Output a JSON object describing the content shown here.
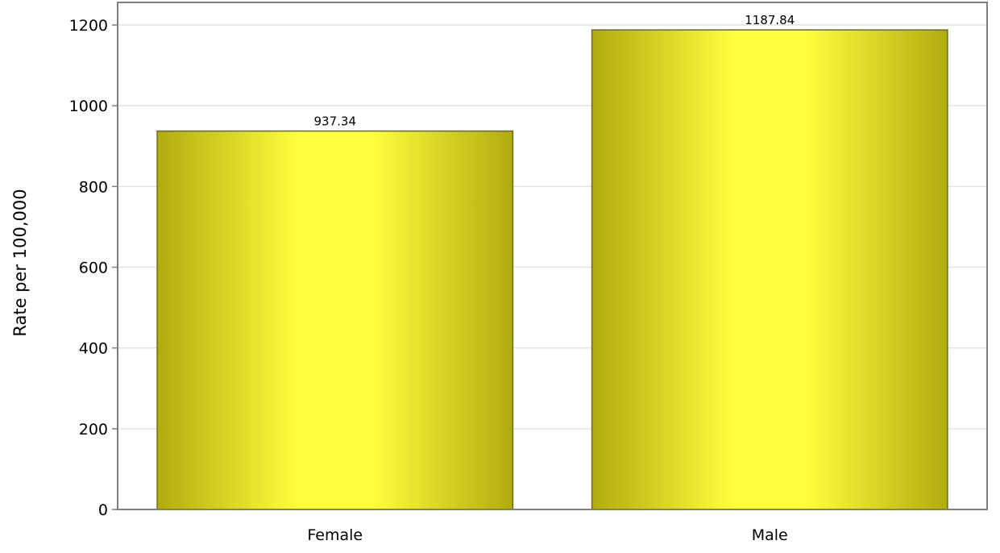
{
  "chart_data": {
    "type": "bar",
    "title": "",
    "xlabel": "",
    "ylabel": "Rate per 100,000",
    "categories": [
      "Female",
      "Male"
    ],
    "values": [
      937.34,
      1187.84
    ],
    "data_labels": [
      "937.34",
      "1187.84"
    ],
    "y_ticks": [
      0,
      200,
      400,
      600,
      800,
      1000,
      1200
    ],
    "ylim": [
      0,
      1200
    ],
    "grid": true,
    "legend": "none",
    "colors": {
      "bar_edge": "#b0ac10",
      "bar_center": "#ffff3c",
      "bar_stroke": "#6e6c10",
      "grid": "#e3e3e3",
      "frame": "#7f7f7f"
    }
  }
}
